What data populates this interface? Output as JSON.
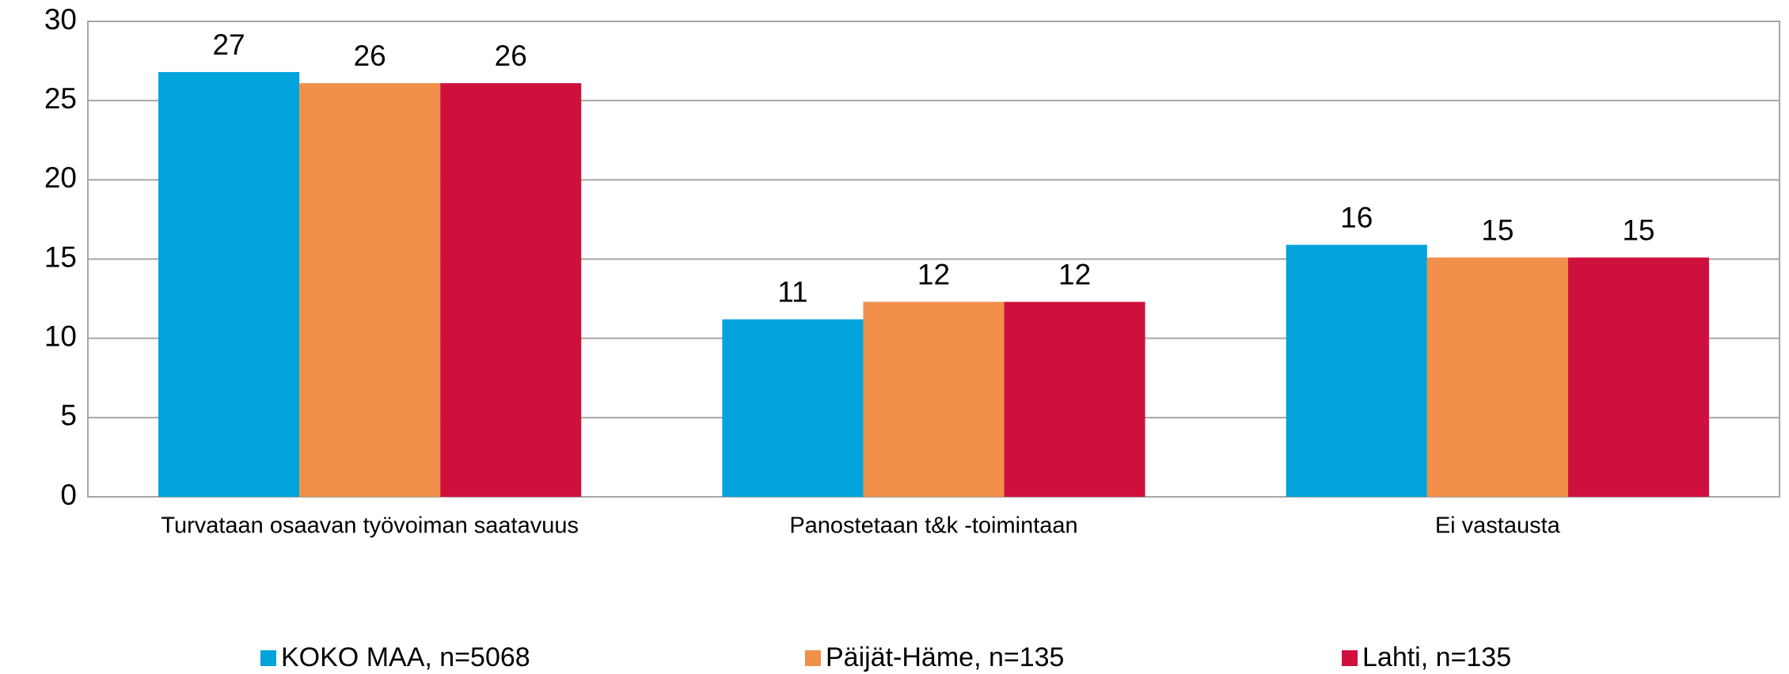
{
  "chart_data": {
    "type": "bar",
    "categories": [
      "Turvataan osaavan työvoiman saatavuus",
      "Panostetaan t&k -toimintaan",
      "Ei vastausta"
    ],
    "series": [
      {
        "name": "KOKO MAA, n=5068",
        "color": "#00a3dc",
        "values": [
          26.8,
          11.2,
          15.9
        ],
        "value_labels": [
          "27",
          "11",
          "16"
        ]
      },
      {
        "name": "Päijät-Häme, n=135",
        "color": "#f0904a",
        "values": [
          26.1,
          12.3,
          15.1
        ],
        "value_labels": [
          "26",
          "12",
          "15"
        ]
      },
      {
        "name": "Lahti, n=135",
        "color": "#d0103c",
        "values": [
          26.1,
          12.3,
          15.1
        ],
        "value_labels": [
          "26",
          "12",
          "15"
        ]
      }
    ],
    "ylim": [
      0,
      30
    ],
    "yticks": [
      0,
      5,
      10,
      15,
      20,
      25,
      30
    ],
    "grid": true,
    "legend": "bottom"
  }
}
